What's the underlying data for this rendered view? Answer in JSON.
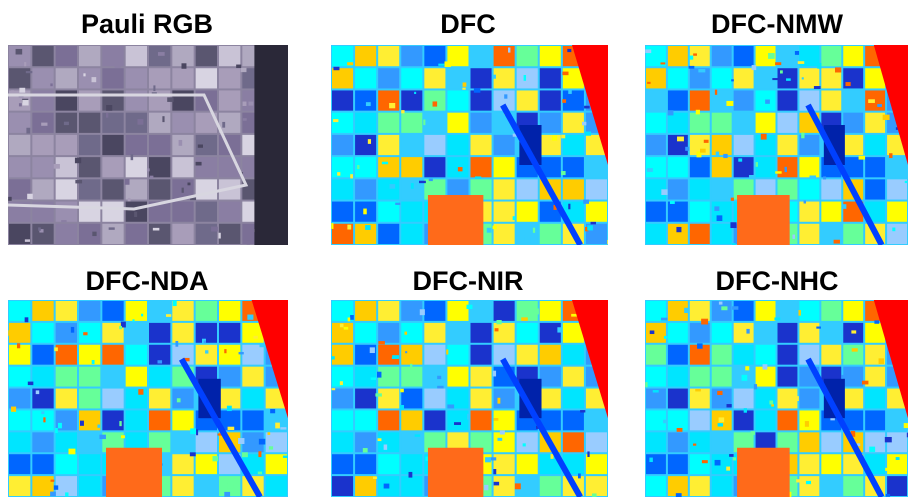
{
  "panels": [
    {
      "title": "Pauli RGB"
    },
    {
      "title": "DFC"
    },
    {
      "title": "DFC-NMW"
    },
    {
      "title": "DFC-NDA"
    },
    {
      "title": "DFC-NIR"
    },
    {
      "title": "DFC-NHC"
    }
  ]
}
